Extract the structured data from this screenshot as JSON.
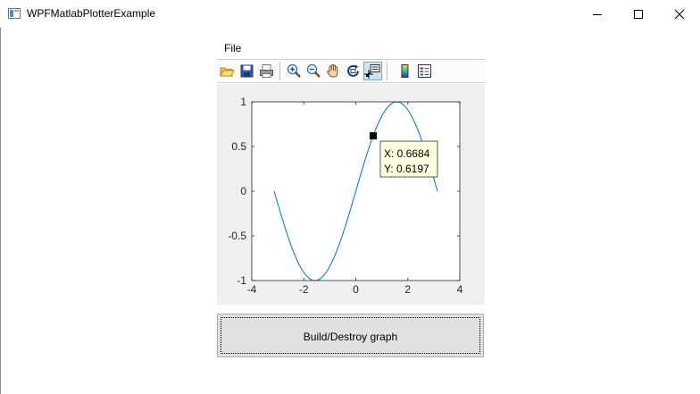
{
  "window": {
    "title": "WPFMatlabPlotterExample",
    "icon": "app-window-icon"
  },
  "menubar": {
    "items": [
      {
        "label": "File"
      }
    ]
  },
  "toolbar": {
    "buttons": [
      {
        "name": "open-icon",
        "active": false
      },
      {
        "name": "save-icon",
        "active": false
      },
      {
        "name": "print-icon",
        "active": false
      },
      {
        "name": "zoom-in-icon",
        "active": false
      },
      {
        "name": "zoom-out-icon",
        "active": false
      },
      {
        "name": "pan-hand-icon",
        "active": false
      },
      {
        "name": "rotate-3d-icon",
        "active": false
      },
      {
        "name": "data-cursor-icon",
        "active": true
      },
      {
        "name": "colorbar-icon",
        "active": false
      },
      {
        "name": "legend-icon",
        "active": false
      }
    ]
  },
  "chart_data": {
    "type": "line",
    "title": "",
    "xlabel": "",
    "ylabel": "",
    "xlim": [
      -4,
      4
    ],
    "ylim": [
      -1,
      1
    ],
    "xticks": [
      -4,
      -2,
      0,
      2,
      4
    ],
    "yticks": [
      -1,
      -0.5,
      0,
      0.5,
      1
    ],
    "xtick_labels": [
      "-4",
      "-2",
      "0",
      "2",
      "4"
    ],
    "ytick_labels": [
      "-1",
      "-0.5",
      "0",
      "0.5",
      "1"
    ],
    "grid": false,
    "series": [
      {
        "function": "sin(x)",
        "x_range": [
          -3.1416,
          3.1416
        ],
        "color": "#0072bd"
      }
    ],
    "datatip": {
      "x": 0.6684,
      "y": 0.6197,
      "line1": "X: 0.6684",
      "line2": "Y: 0.6197"
    }
  },
  "build_button": {
    "label": "Build/Destroy graph"
  },
  "colors": {
    "line": "#0072bd",
    "axes_bg": "#ffffff",
    "figure_bg": "#f0f0f0",
    "tooltip_bg": "#ffffe1"
  }
}
